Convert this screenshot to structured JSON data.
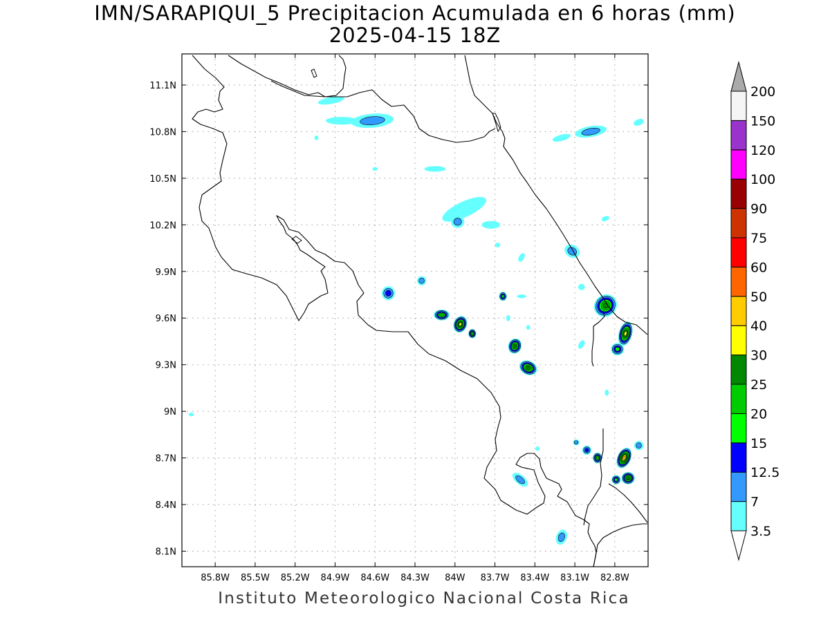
{
  "title": "IMN/SARAPIQUI_5 Precipitacion Acumulada en 6 horas (mm)",
  "subtitle": "2025-04-15 18Z",
  "footer": "Instituto Meteorologico Nacional Costa Rica",
  "map": {
    "lon_range": [
      -86.05,
      -82.55
    ],
    "lat_range": [
      8.0,
      11.3
    ],
    "lon_ticks": [
      {
        "v": -85.8,
        "label": "85.8W"
      },
      {
        "v": -85.5,
        "label": "85.5W"
      },
      {
        "v": -85.2,
        "label": "85.2W"
      },
      {
        "v": -84.9,
        "label": "84.9W"
      },
      {
        "v": -84.6,
        "label": "84.6W"
      },
      {
        "v": -84.3,
        "label": "84.3W"
      },
      {
        "v": -84.0,
        "label": "84W"
      },
      {
        "v": -83.7,
        "label": "83.7W"
      },
      {
        "v": -83.4,
        "label": "83.4W"
      },
      {
        "v": -83.1,
        "label": "83.1W"
      },
      {
        "v": -82.8,
        "label": "82.8W"
      }
    ],
    "lat_ticks": [
      {
        "v": 11.1,
        "label": "11.1N"
      },
      {
        "v": 10.8,
        "label": "10.8N"
      },
      {
        "v": 10.5,
        "label": "10.5N"
      },
      {
        "v": 10.2,
        "label": "10.2N"
      },
      {
        "v": 9.9,
        "label": "9.9N"
      },
      {
        "v": 9.6,
        "label": "9.6N"
      },
      {
        "v": 9.3,
        "label": "9.3N"
      },
      {
        "v": 9.0,
        "label": "9N"
      },
      {
        "v": 8.7,
        "label": "8.7N"
      },
      {
        "v": 8.4,
        "label": "8.4N"
      },
      {
        "v": 8.1,
        "label": "8.1N"
      }
    ],
    "grid": "dotted"
  },
  "colorbar": {
    "labels": [
      "3.5",
      "7",
      "12.5",
      "15",
      "20",
      "25",
      "30",
      "40",
      "50",
      "60",
      "75",
      "90",
      "100",
      "120",
      "150",
      "200"
    ],
    "colors": [
      "#66ffff",
      "#3399ff",
      "#0000ff",
      "#00ff00",
      "#00cc00",
      "#008800",
      "#ffff00",
      "#ffcc00",
      "#ff6600",
      "#ff0000",
      "#cc3300",
      "#990000",
      "#ff00ff",
      "#9933cc",
      "#f5f5f5"
    ],
    "under_color": "#ffffff",
    "over_color": "#aaaaaa"
  },
  "precip_cells": [
    {
      "lon": -84.62,
      "lat": 10.87,
      "rx": 0.16,
      "ry": 0.045,
      "rot": -5,
      "max": 9
    },
    {
      "lon": -84.85,
      "lat": 10.87,
      "rx": 0.12,
      "ry": 0.025,
      "rot": 0,
      "max": 4
    },
    {
      "lon": -84.93,
      "lat": 11.0,
      "rx": 0.1,
      "ry": 0.022,
      "rot": -10,
      "max": 4
    },
    {
      "lon": -83.93,
      "lat": 10.3,
      "rx": 0.18,
      "ry": 0.05,
      "rot": -25,
      "max": 5
    },
    {
      "lon": -83.98,
      "lat": 10.22,
      "rx": 0.05,
      "ry": 0.04,
      "rot": 0,
      "max": 8
    },
    {
      "lon": -83.73,
      "lat": 10.2,
      "rx": 0.07,
      "ry": 0.025,
      "rot": 0,
      "max": 4
    },
    {
      "lon": -84.15,
      "lat": 10.56,
      "rx": 0.08,
      "ry": 0.018,
      "rot": 0,
      "max": 4
    },
    {
      "lon": -83.2,
      "lat": 10.76,
      "rx": 0.07,
      "ry": 0.02,
      "rot": -15,
      "max": 4
    },
    {
      "lon": -82.98,
      "lat": 10.8,
      "rx": 0.12,
      "ry": 0.035,
      "rot": -10,
      "max": 7
    },
    {
      "lon": -82.62,
      "lat": 10.86,
      "rx": 0.04,
      "ry": 0.02,
      "rot": -20,
      "max": 4
    },
    {
      "lon": -83.12,
      "lat": 10.03,
      "rx": 0.06,
      "ry": 0.04,
      "rot": 30,
      "max": 8
    },
    {
      "lon": -84.5,
      "lat": 9.76,
      "rx": 0.05,
      "ry": 0.045,
      "rot": 0,
      "max": 13
    },
    {
      "lon": -84.25,
      "lat": 9.84,
      "rx": 0.035,
      "ry": 0.03,
      "rot": 0,
      "max": 8
    },
    {
      "lon": -84.1,
      "lat": 9.62,
      "rx": 0.06,
      "ry": 0.035,
      "rot": 0,
      "max": 22
    },
    {
      "lon": -83.96,
      "lat": 9.56,
      "rx": 0.05,
      "ry": 0.055,
      "rot": 20,
      "max": 32
    },
    {
      "lon": -83.87,
      "lat": 9.5,
      "rx": 0.03,
      "ry": 0.03,
      "rot": 0,
      "max": 22
    },
    {
      "lon": -83.64,
      "lat": 9.74,
      "rx": 0.03,
      "ry": 0.03,
      "rot": 0,
      "max": 18
    },
    {
      "lon": -83.55,
      "lat": 9.42,
      "rx": 0.05,
      "ry": 0.05,
      "rot": 20,
      "max": 28
    },
    {
      "lon": -83.45,
      "lat": 9.28,
      "rx": 0.07,
      "ry": 0.045,
      "rot": 25,
      "max": 28
    },
    {
      "lon": -82.87,
      "lat": 9.68,
      "rx": 0.09,
      "ry": 0.07,
      "rot": -40,
      "max": 28
    },
    {
      "lon": -82.72,
      "lat": 9.5,
      "rx": 0.05,
      "ry": 0.08,
      "rot": 15,
      "max": 30
    },
    {
      "lon": -82.78,
      "lat": 9.4,
      "rx": 0.05,
      "ry": 0.04,
      "rot": 0,
      "max": 15
    },
    {
      "lon": -82.73,
      "lat": 8.7,
      "rx": 0.05,
      "ry": 0.07,
      "rot": 25,
      "max": 40
    },
    {
      "lon": -82.7,
      "lat": 8.57,
      "rx": 0.05,
      "ry": 0.04,
      "rot": 0,
      "max": 28
    },
    {
      "lon": -82.79,
      "lat": 8.56,
      "rx": 0.035,
      "ry": 0.03,
      "rot": 0,
      "max": 15
    },
    {
      "lon": -82.93,
      "lat": 8.7,
      "rx": 0.035,
      "ry": 0.035,
      "rot": 0,
      "max": 22
    },
    {
      "lon": -83.01,
      "lat": 8.75,
      "rx": 0.035,
      "ry": 0.03,
      "rot": 0,
      "max": 14
    },
    {
      "lon": -83.09,
      "lat": 8.8,
      "rx": 0.025,
      "ry": 0.02,
      "rot": 0,
      "max": 12
    },
    {
      "lon": -82.62,
      "lat": 8.78,
      "rx": 0.035,
      "ry": 0.03,
      "rot": 0,
      "max": 12
    },
    {
      "lon": -83.51,
      "lat": 8.56,
      "rx": 0.07,
      "ry": 0.03,
      "rot": 40,
      "max": 8
    },
    {
      "lon": -83.2,
      "lat": 8.19,
      "rx": 0.04,
      "ry": 0.05,
      "rot": 20,
      "max": 8
    },
    {
      "lon": -84.6,
      "lat": 10.56,
      "rx": 0.02,
      "ry": 0.012,
      "rot": 0,
      "max": 4
    },
    {
      "lon": -85.04,
      "lat": 10.76,
      "rx": 0.015,
      "ry": 0.015,
      "rot": 0,
      "max": 4
    },
    {
      "lon": -85.98,
      "lat": 8.98,
      "rx": 0.02,
      "ry": 0.012,
      "rot": 0,
      "max": 4
    },
    {
      "lon": -83.5,
      "lat": 9.74,
      "rx": 0.035,
      "ry": 0.012,
      "rot": 0,
      "max": 4
    },
    {
      "lon": -83.45,
      "lat": 9.54,
      "rx": 0.015,
      "ry": 0.015,
      "rot": 0,
      "max": 4
    },
    {
      "lon": -83.68,
      "lat": 10.07,
      "rx": 0.02,
      "ry": 0.015,
      "rot": 0,
      "max": 4
    },
    {
      "lon": -83.5,
      "lat": 9.99,
      "rx": 0.02,
      "ry": 0.03,
      "rot": 30,
      "max": 4
    },
    {
      "lon": -82.87,
      "lat": 10.24,
      "rx": 0.03,
      "ry": 0.015,
      "rot": -20,
      "max": 4
    },
    {
      "lon": -83.05,
      "lat": 9.8,
      "rx": 0.025,
      "ry": 0.02,
      "rot": 0,
      "max": 4
    },
    {
      "lon": -83.05,
      "lat": 9.43,
      "rx": 0.02,
      "ry": 0.03,
      "rot": 30,
      "max": 4
    },
    {
      "lon": -82.86,
      "lat": 9.12,
      "rx": 0.015,
      "ry": 0.02,
      "rot": 0,
      "max": 5
    },
    {
      "lon": -83.6,
      "lat": 9.6,
      "rx": 0.015,
      "ry": 0.02,
      "rot": 0,
      "max": 4
    },
    {
      "lon": -83.38,
      "lat": 8.76,
      "rx": 0.015,
      "ry": 0.015,
      "rot": 0,
      "max": 4
    }
  ]
}
